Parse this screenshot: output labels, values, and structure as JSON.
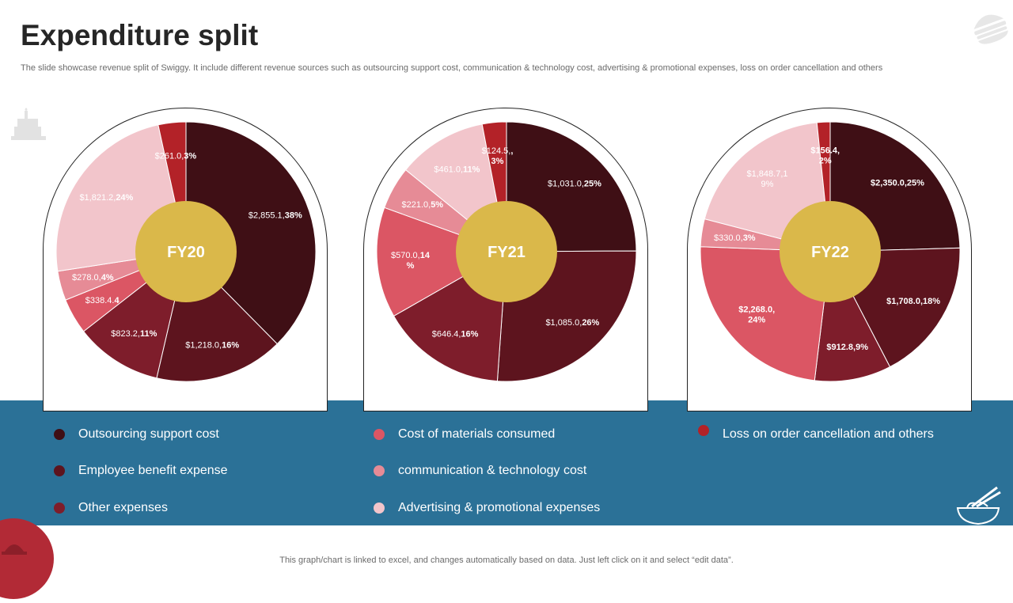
{
  "page": {
    "title": "Expenditure split",
    "subtitle": "The slide showcase revenue split of Swiggy.  It include different revenue sources such as outsourcing support cost, communication & technology cost, advertising & promotional expenses, loss on order cancellation and others",
    "footer": "This graph/chart is linked to excel,  and changes automatically based on data. Just left click on it and select “edit data”."
  },
  "colors": {
    "band": "#2b7197",
    "center": "#dab84a",
    "categories": [
      "#3f0f15",
      "#5d141e",
      "#7e1d2b",
      "#db5664",
      "#e68b96",
      "#f2c5cb",
      "#b32228"
    ]
  },
  "legend": [
    "Outsourcing support cost",
    "Employee benefit expense",
    "Other expenses",
    "Cost of materials consumed",
    "communication & technology cost",
    "Advertising & promotional expenses",
    "Loss on order cancellation and others"
  ],
  "chart_data": [
    {
      "type": "pie",
      "center_label": "FY20",
      "categories": [
        "Outsourcing support cost",
        "Employee benefit expense",
        "Other expenses",
        "Cost of materials consumed",
        "communication & technology cost",
        "Advertising & promotional expenses",
        "Loss on order cancellation and others"
      ],
      "values": [
        2855.1,
        1218.0,
        823.2,
        338.4,
        278.0,
        1821.2,
        261.0
      ],
      "percents": [
        38,
        16,
        11,
        4,
        4,
        24,
        3
      ],
      "labels": [
        {
          "lines": [
            [
              "$2,855.1,",
              "38%"
            ]
          ]
        },
        {
          "lines": [
            [
              "$1,218.0,",
              "16%"
            ]
          ]
        },
        {
          "lines": [
            [
              "$823.2,",
              "11%"
            ]
          ]
        },
        {
          "lines": [
            [
              "$338.4.",
              "4"
            ]
          ]
        },
        {
          "lines": [
            [
              "$278.0,",
              "4%"
            ]
          ]
        },
        {
          "lines": [
            [
              "$1,821.2,",
              "24%"
            ]
          ]
        },
        {
          "lines": [
            [
              "$261.0,",
              "3%"
            ]
          ]
        }
      ]
    },
    {
      "type": "pie",
      "center_label": "FY21",
      "categories": [
        "Outsourcing support cost",
        "Employee benefit expense",
        "Other expenses",
        "Cost of materials consumed",
        "communication & technology cost",
        "Advertising & promotional expenses",
        "Loss on order cancellation and others"
      ],
      "values": [
        1031.0,
        1085.0,
        646.4,
        570.0,
        221.0,
        461.0,
        124.5
      ],
      "percents": [
        25,
        26,
        16,
        14,
        5,
        11,
        3
      ],
      "labels": [
        {
          "lines": [
            [
              "$1,031.0,",
              "25%"
            ]
          ]
        },
        {
          "lines": [
            [
              "$1,085.0,",
              "26%"
            ]
          ]
        },
        {
          "lines": [
            [
              "$646.4,",
              "16%"
            ]
          ]
        },
        {
          "lines": [
            [
              "$570.0,",
              "14"
            ],
            [
              "",
              "%"
            ]
          ]
        },
        {
          "lines": [
            [
              "$221.0,",
              "5%"
            ]
          ]
        },
        {
          "lines": [
            [
              "$461.0,",
              "11%"
            ]
          ]
        },
        {
          "lines": [
            [
              "$124.5,",
              ","
            ],
            [
              "",
              "3%"
            ]
          ]
        }
      ]
    },
    {
      "type": "pie",
      "center_label": "FY22",
      "categories": [
        "Outsourcing support cost",
        "Employee benefit expense",
        "Other expenses",
        "Cost of materials consumed",
        "communication & technology cost",
        "Advertising & promotional expenses",
        "Loss on order cancellation and others"
      ],
      "values": [
        2350.0,
        1708.0,
        912.8,
        2268.0,
        330.0,
        1848.7,
        156.4
      ],
      "percents": [
        25,
        18,
        9,
        24,
        3,
        19,
        2
      ],
      "labels": [
        {
          "lines": [
            [
              "",
              "$2,350.0,25%"
            ]
          ]
        },
        {
          "lines": [
            [
              "",
              "$1,708.0,18%"
            ]
          ]
        },
        {
          "lines": [
            [
              "",
              "$912.8,9%"
            ]
          ]
        },
        {
          "lines": [
            [
              "",
              "$2,268.0,"
            ],
            [
              "",
              "24%"
            ]
          ]
        },
        {
          "lines": [
            [
              "$330.0,",
              "3%"
            ]
          ]
        },
        {
          "lines": [
            [
              "$1,848.7,1",
              ""
            ],
            [
              "9%",
              ""
            ]
          ]
        },
        {
          "lines": [
            [
              "",
              "$156.4,"
            ],
            [
              "",
              "2%"
            ]
          ]
        }
      ]
    }
  ]
}
